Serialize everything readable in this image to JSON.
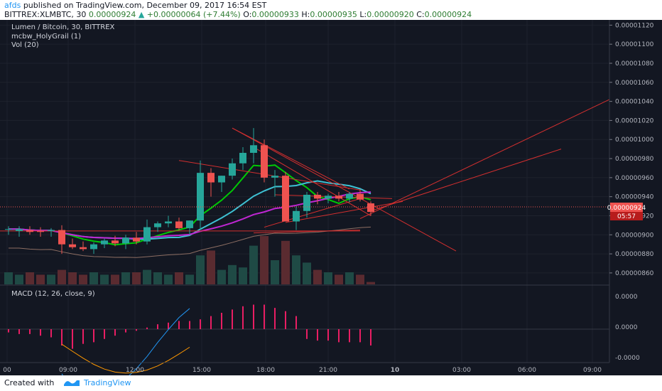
{
  "header": {
    "author": "afds",
    "published": "published on TradingView.com, December 09, 2017 16:54 EST",
    "symbol": "BITTREX:XLMBTC, 30",
    "last": "0.00000924",
    "change": "+0.00000064 (+7.44%)",
    "o_label": "O:",
    "o_value": "0.00000933",
    "h_label": "H:",
    "h_value": "0.00000935",
    "l_label": "L:",
    "l_value": "0.00000920",
    "c_label": "C:",
    "c_value": "0.00000924"
  },
  "legend": {
    "title": "Lumen / Bitcoin, 30, BITTREX",
    "indicator": "mcbw_HolyGrail (1)",
    "volume": "Vol (20)",
    "macd": "MACD (12, 26, close, 9)"
  },
  "footer": {
    "created_with": "Created with",
    "brand": "TradingView"
  },
  "colors": {
    "up": "#26a69a",
    "down": "#ef5350",
    "ma_green": "#00c805",
    "ma_cyan": "#3ec1d3",
    "ma_magenta": "#c026d3",
    "price_tag": "#ef5350",
    "trend": "#d32f2f"
  },
  "chart_data": {
    "type": "candlestick",
    "price_axis": {
      "ticks": [
        "0.00001120",
        "0.00001100",
        "0.00001080",
        "0.00001060",
        "0.00001040",
        "0.00001020",
        "0.00001000",
        "0.00000980",
        "0.00000960",
        "0.00000940",
        "0.00000920",
        "0.00000900",
        "0.00000880",
        "0.00000860"
      ],
      "range": [
        8.48e-06,
        1.124e-05
      ]
    },
    "last_price_tag": "0.00000924",
    "countdown": "05:57",
    "time_axis": {
      "labels": [
        "00",
        "09:00",
        "12:00",
        "15:00",
        "18:00",
        "21:00",
        "10",
        "03:00",
        "06:00",
        "09:00"
      ],
      "bold_index": 6
    },
    "macd_axis": {
      "labels": [
        "0.0000",
        "0.0000",
        "-0.0000"
      ]
    },
    "candles": [
      {
        "o": 906,
        "h": 909,
        "l": 900,
        "c": 906
      },
      {
        "o": 904,
        "h": 909,
        "l": 898,
        "c": 906
      },
      {
        "o": 905,
        "h": 909,
        "l": 900,
        "c": 903
      },
      {
        "o": 904,
        "h": 908,
        "l": 898,
        "c": 903
      },
      {
        "o": 904,
        "h": 907,
        "l": 898,
        "c": 905
      },
      {
        "o": 905,
        "h": 910,
        "l": 880,
        "c": 890
      },
      {
        "o": 890,
        "h": 896,
        "l": 885,
        "c": 887
      },
      {
        "o": 887,
        "h": 893,
        "l": 883,
        "c": 885
      },
      {
        "o": 885,
        "h": 892,
        "l": 880,
        "c": 890
      },
      {
        "o": 890,
        "h": 896,
        "l": 886,
        "c": 894
      },
      {
        "o": 894,
        "h": 899,
        "l": 888,
        "c": 891
      },
      {
        "o": 891,
        "h": 900,
        "l": 885,
        "c": 897
      },
      {
        "o": 897,
        "h": 903,
        "l": 890,
        "c": 893
      },
      {
        "o": 893,
        "h": 916,
        "l": 890,
        "c": 908
      },
      {
        "o": 908,
        "h": 914,
        "l": 903,
        "c": 912
      },
      {
        "o": 912,
        "h": 920,
        "l": 908,
        "c": 914
      },
      {
        "o": 914,
        "h": 918,
        "l": 905,
        "c": 907
      },
      {
        "o": 907,
        "h": 915,
        "l": 900,
        "c": 915
      },
      {
        "o": 915,
        "h": 978,
        "l": 905,
        "c": 965
      },
      {
        "o": 965,
        "h": 970,
        "l": 940,
        "c": 955
      },
      {
        "o": 955,
        "h": 962,
        "l": 945,
        "c": 962
      },
      {
        "o": 962,
        "h": 980,
        "l": 958,
        "c": 975
      },
      {
        "o": 975,
        "h": 992,
        "l": 968,
        "c": 986
      },
      {
        "o": 986,
        "h": 1012,
        "l": 975,
        "c": 994
      },
      {
        "o": 994,
        "h": 1000,
        "l": 955,
        "c": 960
      },
      {
        "o": 960,
        "h": 968,
        "l": 940,
        "c": 962
      },
      {
        "o": 962,
        "h": 966,
        "l": 915,
        "c": 914
      },
      {
        "o": 914,
        "h": 930,
        "l": 905,
        "c": 925
      },
      {
        "o": 925,
        "h": 945,
        "l": 918,
        "c": 942
      },
      {
        "o": 942,
        "h": 945,
        "l": 932,
        "c": 938
      },
      {
        "o": 938,
        "h": 943,
        "l": 933,
        "c": 941
      },
      {
        "o": 941,
        "h": 945,
        "l": 935,
        "c": 938
      },
      {
        "o": 938,
        "h": 945,
        "l": 934,
        "c": 943
      },
      {
        "o": 943,
        "h": 948,
        "l": 935,
        "c": 937
      },
      {
        "o": 933,
        "h": 935,
        "l": 920,
        "c": 924
      }
    ],
    "volumes": [
      5,
      4,
      5,
      4,
      4,
      6,
      5,
      4,
      5,
      4,
      4,
      5,
      5,
      6,
      5,
      4,
      5,
      4,
      12,
      14,
      6,
      8,
      7,
      16,
      20,
      10,
      18,
      12,
      9,
      6,
      5,
      4,
      5,
      4,
      1
    ],
    "macd_hist": [
      -2,
      -3,
      -3,
      -4,
      -5,
      -10,
      -12,
      -9,
      -8,
      -6,
      -4,
      -2,
      -1,
      1,
      3,
      4,
      5,
      5,
      6,
      8,
      10,
      12,
      14,
      15,
      15,
      13,
      11,
      8,
      -6,
      -7,
      -7,
      -8,
      -8,
      -8,
      -10
    ]
  }
}
